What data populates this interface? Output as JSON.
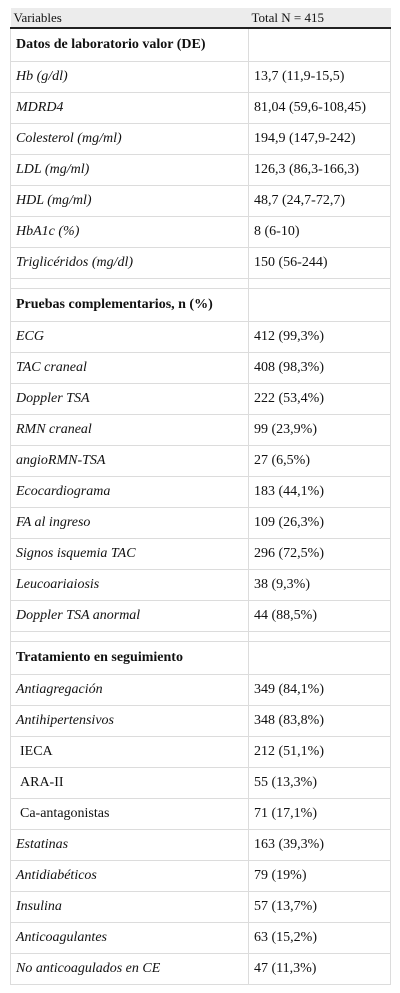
{
  "header": {
    "col1": "Variables",
    "col2": "Total N = 415"
  },
  "sections": [
    {
      "title": "Datos de laboratorio valor (DE)",
      "rows": [
        {
          "label": "Hb (g/dl)",
          "value": "13,7 (11,9-15,5)"
        },
        {
          "label": "MDRD4",
          "value": "81,04 (59,6-108,45)"
        },
        {
          "label": "Colesterol (mg/ml)",
          "value": "194,9 (147,9-242)"
        },
        {
          "label": "LDL (mg/ml)",
          "value": "126,3 (86,3-166,3)"
        },
        {
          "label": "HDL (mg/ml)",
          "value": "48,7 (24,7-72,7)"
        },
        {
          "label": "HbA1c (%)",
          "value": "8 (6-10)"
        },
        {
          "label": "Triglicéridos (mg/dl)",
          "value": "150 (56-244)"
        }
      ]
    },
    {
      "title": "Pruebas complementarios, n (%)",
      "rows": [
        {
          "label": "ECG",
          "value": "412 (99,3%)"
        },
        {
          "label": "TAC craneal",
          "value": "408 (98,3%)"
        },
        {
          "label": "Doppler TSA",
          "value": "222 (53,4%)"
        },
        {
          "label": "RMN craneal",
          "value": "99 (23,9%)"
        },
        {
          "label": "angioRMN-TSA",
          "value": "27 (6,5%)"
        },
        {
          "label": "Ecocardiograma",
          "value": "183 (44,1%)"
        },
        {
          "label": "FA al ingreso",
          "value": "109 (26,3%)"
        },
        {
          "label": "Signos isquemia TAC",
          "value": "296 (72,5%)"
        },
        {
          "label": "Leucoariaiosis",
          "value": "38 (9,3%)"
        },
        {
          "label": "Doppler TSA anormal",
          "value": "44 (88,5%)"
        }
      ]
    },
    {
      "title": "Tratamiento en seguimiento",
      "rows": [
        {
          "label": "Antiagregación",
          "value": "349 (84,1%)"
        },
        {
          "label": "Antihipertensivos",
          "value": "348 (83,8%)"
        },
        {
          "label": "IECA",
          "value": "212 (51,1%)"
        },
        {
          "label": "ARA-II",
          "value": "55 (13,3%)"
        },
        {
          "label": "Ca-antagonistas",
          "value": "71 (17,1%)"
        },
        {
          "label": "Estatinas",
          "value": "163 (39,3%)"
        },
        {
          "label": "Antidiabéticos",
          "value": "79 (19%)"
        },
        {
          "label": "Insulina",
          "value": "57 (13,7%)"
        },
        {
          "label": "Anticoagulantes",
          "value": "63 (15,2%)"
        },
        {
          "label": "No anticoagulados en CE",
          "value": "47 (11,3%)"
        }
      ]
    }
  ]
}
